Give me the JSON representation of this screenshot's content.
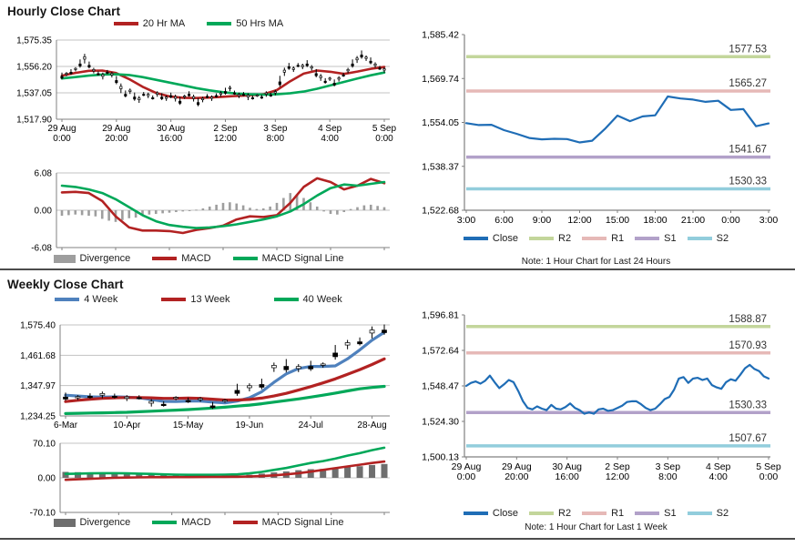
{
  "sections": {
    "hourly": {
      "title": "Hourly Close Chart",
      "note": "Note: 1 Hour Chart for Last 24 Hours"
    },
    "weekly": {
      "title": "Weekly Close Chart",
      "note": "Note: 1 Hour Chart for Last 1 Week"
    }
  },
  "colors": {
    "grid": "#C3C3C3",
    "axis": "#808080",
    "tick_text": "#000000",
    "pivot_label": "#333333",
    "divider": "#4C4C4C"
  },
  "chart_data": [
    {
      "id": "hourly_price",
      "type": "candlestick",
      "x_ticks": [
        "29 Aug|0:00",
        "29 Aug|20:00",
        "30 Aug|16:00",
        "2 Sep|12:00",
        "3 Sep|8:00",
        "4 Sep|4:00",
        "5 Sep|0:00"
      ],
      "y_ticks": [
        "1,575.35",
        "1,556.20",
        "1,537.05",
        "1,517.90"
      ],
      "ylim": [
        1517.9,
        1575.35
      ],
      "legend": [
        {
          "label": "20 Hr MA",
          "color": "#B22222",
          "swatch": "line"
        },
        {
          "label": "50 Hrs MA",
          "color": "#00A859",
          "swatch": "line"
        }
      ],
      "candles": {
        "color": "#000000",
        "close": [
          1549,
          1550.5,
          1552,
          1554,
          1558,
          1561.5,
          1557,
          1553,
          1551,
          1549,
          1552,
          1550,
          1546,
          1540,
          1536,
          1538,
          1534,
          1532,
          1536,
          1535,
          1533.5,
          1536,
          1534,
          1533,
          1535,
          1533,
          1531,
          1534,
          1536,
          1533,
          1530,
          1532,
          1534.5,
          1533,
          1535,
          1536,
          1538,
          1540,
          1537,
          1535,
          1536,
          1534,
          1533.5,
          1535,
          1534,
          1536,
          1535.5,
          1537,
          1545,
          1552,
          1556,
          1554,
          1557,
          1556,
          1558,
          1555,
          1551,
          1548,
          1545.5,
          1547,
          1544,
          1547,
          1550,
          1553,
          1558,
          1561,
          1564.5,
          1562,
          1560,
          1557,
          1555,
          1553.5
        ],
        "range": [
          5,
          3,
          4,
          3,
          6,
          7,
          5,
          4,
          3,
          5,
          3,
          4,
          6,
          7,
          5,
          4,
          6,
          5,
          3,
          4,
          3,
          4,
          5,
          4,
          4,
          5,
          6,
          3,
          4,
          5,
          6,
          4,
          3,
          4,
          3,
          4,
          5,
          4,
          3,
          4,
          3,
          5,
          3,
          2,
          3,
          4,
          3,
          4,
          8,
          6,
          5,
          4,
          3,
          4,
          5,
          4,
          6,
          5,
          4,
          3,
          5,
          4,
          3,
          4,
          6,
          5,
          6,
          4,
          5,
          4,
          3,
          4
        ]
      },
      "series": [
        {
          "name": "20 Hr MA",
          "color": "#B22222",
          "values": [
            1549.5,
            1551.5,
            1553,
            1553.2,
            1551.5,
            1547,
            1541.5,
            1537,
            1534.5,
            1533.5,
            1533.3,
            1533.6,
            1534.2,
            1534.8,
            1535.3,
            1536,
            1539,
            1545.5,
            1551,
            1553.2,
            1552.3,
            1550.8,
            1552.5,
            1554.5,
            1555.8
          ]
        },
        {
          "name": "50 Hrs MA",
          "color": "#00A859",
          "values": [
            1547.5,
            1548.5,
            1549.5,
            1550.3,
            1550.5,
            1550,
            1548.5,
            1546.5,
            1544.5,
            1542.5,
            1540.5,
            1538.8,
            1537.5,
            1536.5,
            1536,
            1535.8,
            1536,
            1536.8,
            1538,
            1540,
            1542.5,
            1545,
            1547.5,
            1549.8,
            1551.8
          ]
        }
      ]
    },
    {
      "id": "hourly_macd",
      "type": "bar",
      "y_ticks": [
        "6.08",
        "0.00",
        "-6.08"
      ],
      "ylim": [
        -6.08,
        6.08
      ],
      "legend": [
        {
          "label": "Divergence",
          "color": "#9E9E9E",
          "swatch": "bar"
        },
        {
          "label": "MACD",
          "color": "#B22222",
          "swatch": "line"
        },
        {
          "label": "MACD Signal Line",
          "color": "#00A859",
          "swatch": "line"
        }
      ],
      "bars": {
        "name": "Divergence",
        "color": "#9E9E9E",
        "values": [
          -0.9,
          -0.8,
          -0.7,
          -0.8,
          -0.9,
          -1.0,
          -1.4,
          -1.7,
          -1.9,
          -1.6,
          -1.3,
          -1.2,
          -0.9,
          -0.7,
          -0.6,
          -0.5,
          -0.4,
          -0.3,
          -0.2,
          -0.1,
          0.1,
          0.3,
          0.6,
          0.9,
          1.2,
          1.3,
          1.1,
          0.8,
          0.4,
          0.2,
          0.3,
          0.6,
          1.2,
          2.0,
          2.8,
          2.6,
          2.0,
          1.3,
          0.6,
          -0.2,
          -0.6,
          -0.7,
          -0.3,
          0.2,
          0.5,
          0.8,
          0.9,
          0.7,
          0.5
        ]
      },
      "series": [
        {
          "name": "MACD",
          "color": "#B22222",
          "values": [
            2.9,
            3.0,
            2.8,
            1.5,
            -1.0,
            -2.8,
            -3.3,
            -3.3,
            -3.4,
            -3.7,
            -3.2,
            -2.9,
            -2.5,
            -1.5,
            -1.0,
            -1.1,
            -0.8,
            1.2,
            3.8,
            5.2,
            4.6,
            3.4,
            4.0,
            5.1,
            4.4
          ]
        },
        {
          "name": "MACD Signal Line",
          "color": "#00A859",
          "values": [
            4.0,
            3.8,
            3.4,
            2.8,
            1.8,
            0.5,
            -0.8,
            -1.8,
            -2.4,
            -2.7,
            -2.9,
            -2.8,
            -2.6,
            -2.3,
            -1.9,
            -1.5,
            -1.0,
            -0.2,
            1.0,
            2.4,
            3.6,
            4.2,
            4.0,
            4.3,
            4.6
          ]
        }
      ]
    },
    {
      "id": "hourly_pivot",
      "type": "line",
      "x_ticks": [
        "3:00",
        "6:00",
        "9:00",
        "12:00",
        "15:00",
        "18:00",
        "21:00",
        "0:00",
        "3:00"
      ],
      "y_ticks": [
        "1,585.42",
        "1,569.74",
        "1,554.05",
        "1,538.37",
        "1,522.68"
      ],
      "ylim": [
        1522.68,
        1585.42
      ],
      "legend": [
        {
          "label": "Close",
          "color": "#1F6DB6",
          "swatch": "line"
        },
        {
          "label": "R2",
          "color": "#C3D69B",
          "swatch": "line"
        },
        {
          "label": "R1",
          "color": "#E6B9B7",
          "swatch": "line"
        },
        {
          "label": "S1",
          "color": "#B2A1C9",
          "swatch": "line"
        },
        {
          "label": "S2",
          "color": "#92CDDC",
          "swatch": "line"
        }
      ],
      "series": [
        {
          "name": "Close",
          "color": "#1F6DB6",
          "values": [
            1553.8,
            1553.1,
            1553.2,
            1551.3,
            1550.0,
            1548.5,
            1548.0,
            1548.2,
            1548.1,
            1546.9,
            1547.5,
            1551.7,
            1556.5,
            1554.5,
            1556.2,
            1556.6,
            1563.3,
            1562.6,
            1562.2,
            1561.4,
            1561.8,
            1558.5,
            1558.8,
            1552.7,
            1553.7
          ]
        }
      ],
      "pivots": [
        {
          "name": "R2",
          "label": "1577.53",
          "value": 1577.53,
          "color": "#C3D69B"
        },
        {
          "name": "R1",
          "label": "1565.27",
          "value": 1565.27,
          "color": "#E6B9B7"
        },
        {
          "name": "S1",
          "label": "1541.67",
          "value": 1541.67,
          "color": "#B2A1C9"
        },
        {
          "name": "S2",
          "label": "1530.33",
          "value": 1530.33,
          "color": "#92CDDC"
        }
      ]
    },
    {
      "id": "weekly_price",
      "type": "candlestick",
      "x_ticks": [
        "6-Mar",
        "10-Apr",
        "15-May",
        "19-Jun",
        "24-Jul",
        "28-Aug"
      ],
      "y_ticks": [
        "1,575.40",
        "1,461.68",
        "1,347.97",
        "1,234.25"
      ],
      "ylim": [
        1234.25,
        1575.4
      ],
      "legend": [
        {
          "label": "4 Week",
          "color": "#4F81BD",
          "swatch": "line"
        },
        {
          "label": "13 Week",
          "color": "#B22222",
          "swatch": "line"
        },
        {
          "label": "40 Week",
          "color": "#00A859",
          "swatch": "line"
        }
      ],
      "candles": {
        "color": "#000000",
        "close": [
          1305,
          1302,
          1308,
          1312,
          1308,
          1300,
          1303,
          1282,
          1278,
          1300,
          1292,
          1295,
          1272,
          1290,
          1330,
          1340,
          1352,
          1415,
          1420,
          1412,
          1420,
          1424,
          1470,
          1500,
          1512,
          1545,
          1556
        ],
        "range": [
          30,
          18,
          20,
          25,
          18,
          22,
          16,
          28,
          20,
          15,
          20,
          18,
          26,
          14,
          45,
          30,
          40,
          35,
          50,
          30,
          38,
          20,
          55,
          35,
          30,
          45,
          38
        ]
      },
      "series": [
        {
          "name": "4 Week",
          "color": "#4F81BD",
          "values": [
            1312,
            1309,
            1306,
            1305,
            1306,
            1305,
            1302,
            1296,
            1289,
            1288,
            1290,
            1290,
            1286,
            1283,
            1290,
            1302,
            1325,
            1360,
            1392,
            1412,
            1420,
            1420,
            1422,
            1448,
            1482,
            1518,
            1548
          ]
        },
        {
          "name": "13 Week",
          "color": "#B22222",
          "values": [
            1288,
            1293,
            1297,
            1300,
            1302,
            1303,
            1303,
            1302,
            1300,
            1300,
            1301,
            1300,
            1297,
            1294,
            1294,
            1296,
            1301,
            1309,
            1319,
            1331,
            1344,
            1358,
            1373,
            1390,
            1408,
            1427,
            1448
          ]
        },
        {
          "name": "40 Week",
          "color": "#00A859",
          "values": [
            1243,
            1244,
            1245,
            1246,
            1247,
            1248,
            1250,
            1252,
            1254,
            1256,
            1258,
            1261,
            1264,
            1267,
            1271,
            1275,
            1280,
            1286,
            1292,
            1298,
            1305,
            1312,
            1320,
            1328,
            1336,
            1341,
            1345
          ]
        }
      ]
    },
    {
      "id": "weekly_macd",
      "type": "bar",
      "y_ticks": [
        "70.10",
        "0.00",
        "-70.10"
      ],
      "ylim": [
        -70.1,
        70.1
      ],
      "legend": [
        {
          "label": "Divergence",
          "color": "#6E6E6E",
          "swatch": "bar"
        },
        {
          "label": "MACD",
          "color": "#00A859",
          "swatch": "line"
        },
        {
          "label": "MACD Signal Line",
          "color": "#B22222",
          "swatch": "line"
        }
      ],
      "bars": {
        "name": "Divergence",
        "color": "#6E6E6E",
        "values": [
          12,
          11.5,
          11,
          10.5,
          9.5,
          8.5,
          7.5,
          6.8,
          5.7,
          5.1,
          4.5,
          4.4,
          4.2,
          4.5,
          4.7,
          6.2,
          8.5,
          11,
          13,
          15.5,
          17.5,
          18,
          19.5,
          22,
          23.5,
          26,
          28
        ]
      },
      "series": [
        {
          "name": "MACD",
          "color": "#00A859",
          "values": [
            8,
            8.5,
            9,
            9.5,
            9.5,
            9,
            8.5,
            8,
            7,
            6.5,
            6,
            6,
            6,
            6.5,
            7,
            9,
            12,
            16,
            20,
            25,
            30,
            34,
            39,
            45,
            50,
            56,
            61
          ]
        },
        {
          "name": "MACD Signal Line",
          "color": "#B22222",
          "values": [
            -4,
            -3,
            -2,
            -1,
            0,
            0.5,
            1,
            1.2,
            1.3,
            1.4,
            1.5,
            1.6,
            1.8,
            2,
            2.3,
            2.8,
            3.5,
            5,
            7,
            9.5,
            12.5,
            16,
            19.5,
            23,
            26.5,
            30,
            33
          ]
        }
      ]
    },
    {
      "id": "weekly_pivot",
      "type": "line",
      "x_ticks": [
        "29 Aug|0:00",
        "29 Aug|20:00",
        "30 Aug|16:00",
        "2 Sep|12:00",
        "3 Sep|8:00",
        "4 Sep|4:00",
        "5 Sep|0:00"
      ],
      "y_ticks": [
        "1,596.81",
        "1,572.64",
        "1,548.47",
        "1,524.30",
        "1,500.13"
      ],
      "ylim": [
        1500.13,
        1596.81
      ],
      "legend": [
        {
          "label": "Close",
          "color": "#1F6DB6",
          "swatch": "line"
        },
        {
          "label": "R2",
          "color": "#C3D69B",
          "swatch": "line"
        },
        {
          "label": "R1",
          "color": "#E6B9B7",
          "swatch": "line"
        },
        {
          "label": "S1",
          "color": "#B2A1C9",
          "swatch": "line"
        },
        {
          "label": "S2",
          "color": "#92CDDC",
          "swatch": "line"
        }
      ],
      "series": [
        {
          "name": "Close",
          "color": "#1F6DB6",
          "values": [
            1548.5,
            1550.5,
            1551.5,
            1550,
            1552,
            1555.5,
            1551,
            1547,
            1549.5,
            1552.5,
            1551,
            1545,
            1538,
            1533.5,
            1532.5,
            1534.5,
            1533,
            1532,
            1535.5,
            1533,
            1532.5,
            1534,
            1536.5,
            1533.5,
            1532,
            1529.5,
            1530.5,
            1529.5,
            1532.5,
            1533,
            1531.5,
            1532,
            1533.5,
            1535,
            1537.5,
            1538,
            1538,
            1536,
            1533.5,
            1532,
            1533,
            1536,
            1539.5,
            1541,
            1546,
            1553.5,
            1554.5,
            1550.5,
            1553.5,
            1554,
            1552.5,
            1553.5,
            1549,
            1547.5,
            1546.5,
            1551,
            1553,
            1552,
            1556,
            1560.5,
            1562.8,
            1560,
            1558.5,
            1555,
            1553.5
          ]
        }
      ],
      "pivots": [
        {
          "name": "R2",
          "label": "1588.87",
          "value": 1588.87,
          "color": "#C3D69B"
        },
        {
          "name": "R1",
          "label": "1570.93",
          "value": 1570.93,
          "color": "#E6B9B7"
        },
        {
          "name": "S1",
          "label": "1530.33",
          "value": 1530.33,
          "color": "#B2A1C9"
        },
        {
          "name": "S2",
          "label": "1507.67",
          "value": 1507.67,
          "color": "#92CDDC"
        }
      ]
    }
  ]
}
